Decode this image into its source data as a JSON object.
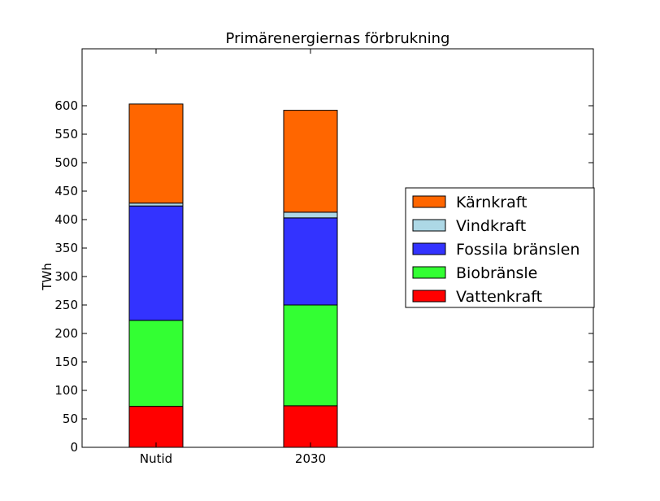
{
  "chart_data": {
    "type": "bar",
    "stacked": true,
    "title": "Primärenergiernas förbrukning",
    "xlabel": "",
    "ylabel": "TWh",
    "categories": [
      "Nutid",
      "2030"
    ],
    "ylim": [
      0,
      700
    ],
    "yticks": [
      0,
      50,
      100,
      150,
      200,
      250,
      300,
      350,
      400,
      450,
      500,
      550,
      600
    ],
    "grid": false,
    "legend_position": "right",
    "series": [
      {
        "name": "Vattenkraft",
        "color": "#ff0000",
        "values": [
          72,
          73
        ]
      },
      {
        "name": "Biobränsle",
        "color": "#33ff33",
        "values": [
          151,
          177
        ]
      },
      {
        "name": "Fossila bränslen",
        "color": "#3333ff",
        "values": [
          201,
          153
        ]
      },
      {
        "name": "Vindkraft",
        "color": "#add8e6",
        "values": [
          5,
          10
        ]
      },
      {
        "name": "Kärnkraft",
        "color": "#ff6600",
        "values": [
          174,
          179
        ]
      }
    ]
  }
}
